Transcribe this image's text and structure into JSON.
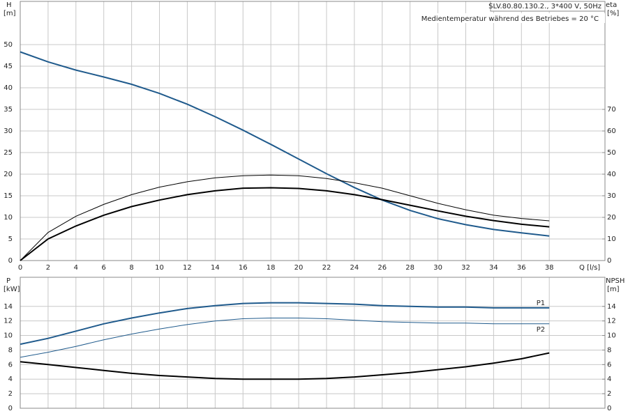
{
  "chart_data": [
    {
      "type": "line",
      "title": "SLV.80.80.130.2., 3*400 V, 50Hz",
      "subtitle": "Medientemperatur während des Betriebes = 20 °C",
      "y_label": "H",
      "y_unit": "[m]",
      "y2_label": "eta",
      "y2_unit": "[%]",
      "x_label": "Q [l/s]",
      "x": [
        0,
        2,
        4,
        6,
        8,
        10,
        12,
        14,
        16,
        18,
        20,
        22,
        24,
        26,
        28,
        30,
        32,
        34,
        36,
        38
      ],
      "xlim": [
        0,
        42
      ],
      "xticks": [
        0,
        2,
        4,
        6,
        8,
        10,
        12,
        14,
        16,
        18,
        20,
        22,
        24,
        26,
        28,
        30,
        32,
        34,
        36,
        38
      ],
      "ylim": [
        0,
        60
      ],
      "yticks": [
        0,
        5,
        10,
        15,
        20,
        25,
        30,
        35,
        40,
        45,
        50
      ],
      "y2lim": [
        0,
        120
      ],
      "y2ticks": [
        0,
        10,
        20,
        30,
        40,
        50,
        60,
        70
      ],
      "grid": true,
      "series": [
        {
          "color": "#1f5a8c",
          "line_width": 2,
          "values": [
            48.3,
            46,
            44.1,
            42.5,
            40.8,
            38.7,
            36.2,
            33.3,
            30.2,
            26.9,
            23.5,
            20.1,
            16.9,
            14,
            11.6,
            9.7,
            8.3,
            7.2,
            6.4,
            5.7
          ]
        },
        {
          "axis": "y2",
          "color": "#000000",
          "line_width": 1,
          "values": [
            0,
            13,
            20.5,
            26,
            30.5,
            34,
            36.5,
            38.3,
            39.3,
            39.6,
            39.3,
            38,
            36,
            33.5,
            30,
            26.5,
            23.5,
            21,
            19.5,
            18.4
          ]
        },
        {
          "axis": "y2",
          "color": "#000000",
          "line_width": 2,
          "values": [
            0,
            10,
            16,
            21,
            25,
            28,
            30.5,
            32.3,
            33.5,
            33.7,
            33.4,
            32.3,
            30.5,
            28.2,
            25.6,
            23,
            20.5,
            18.5,
            16.8,
            15.6
          ]
        }
      ]
    },
    {
      "type": "line",
      "y_label": "P",
      "y_unit": "[kW]",
      "y2_label": "NPSH",
      "y2_unit": "[m]",
      "x": [
        0,
        2,
        4,
        6,
        8,
        10,
        12,
        14,
        16,
        18,
        20,
        22,
        24,
        26,
        28,
        30,
        32,
        34,
        36,
        38
      ],
      "xlim": [
        0,
        42
      ],
      "xticks": [
        0,
        2,
        4,
        6,
        8,
        10,
        12,
        14,
        16,
        18,
        20,
        22,
        24,
        26,
        28,
        30,
        32,
        34,
        36,
        38
      ],
      "ylim": [
        0,
        18
      ],
      "yticks": [
        0,
        2,
        4,
        6,
        8,
        10,
        12,
        14
      ],
      "y2lim": [
        0,
        18
      ],
      "y2ticks": [
        0,
        2,
        4,
        6,
        8,
        10,
        12,
        14
      ],
      "grid": true,
      "series": [
        {
          "name": "P1",
          "color": "#1f5a8c",
          "line_width": 2,
          "values": [
            8.8,
            9.6,
            10.6,
            11.6,
            12.4,
            13.1,
            13.7,
            14.1,
            14.4,
            14.5,
            14.5,
            14.4,
            14.3,
            14.1,
            14,
            13.9,
            13.9,
            13.8,
            13.8,
            13.8
          ]
        },
        {
          "name": "P2",
          "color": "#1f5a8c",
          "line_width": 1,
          "values": [
            7,
            7.7,
            8.5,
            9.4,
            10.2,
            10.9,
            11.5,
            12,
            12.3,
            12.4,
            12.4,
            12.3,
            12.1,
            11.9,
            11.8,
            11.7,
            11.7,
            11.6,
            11.6,
            11.6
          ]
        },
        {
          "axis": "y2",
          "color": "#000000",
          "line_width": 2,
          "values": [
            6.4,
            6,
            5.6,
            5.2,
            4.8,
            4.5,
            4.3,
            4.1,
            4,
            4,
            4,
            4.1,
            4.3,
            4.6,
            4.9,
            5.3,
            5.7,
            6.2,
            6.8,
            7.6
          ]
        }
      ]
    }
  ]
}
